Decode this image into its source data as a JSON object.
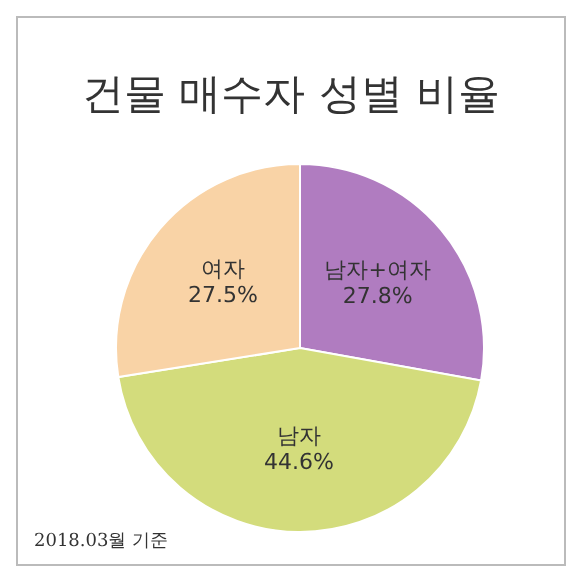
{
  "chart_data": {
    "type": "pie",
    "title": "건물 매수자 성별 비율",
    "categories": [
      "남자+여자",
      "남자",
      "여자"
    ],
    "values": [
      27.8,
      44.6,
      27.5
    ],
    "colors": [
      "#b07cc0",
      "#d3dc7c",
      "#f9d3a6"
    ],
    "value_labels": [
      "27.8%",
      "44.6%",
      "27.5%"
    ],
    "annotations": [
      "2018.03월 기준"
    ]
  }
}
